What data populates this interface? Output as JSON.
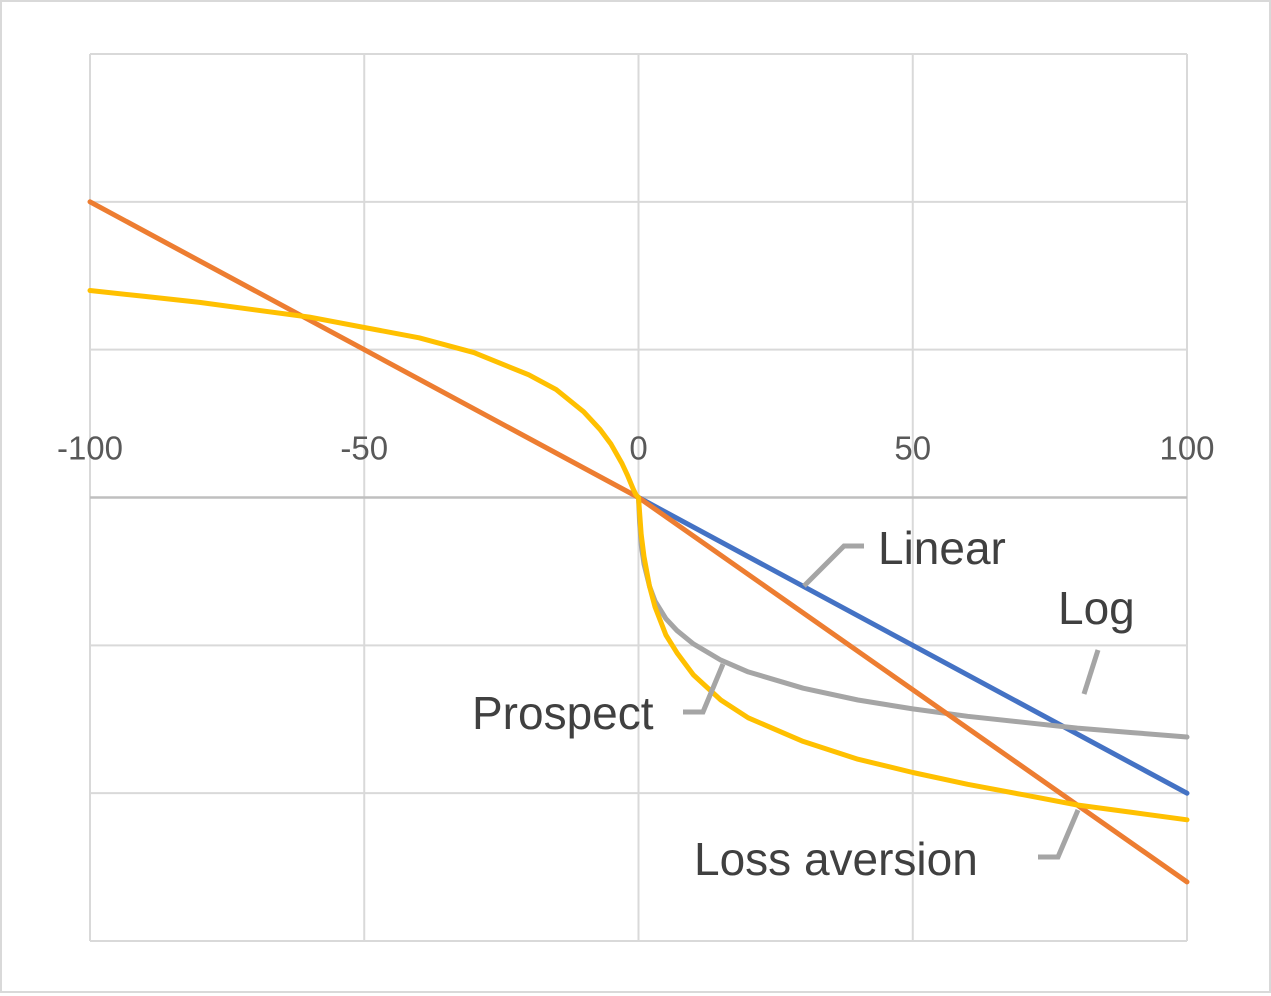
{
  "colors": {
    "grid": "#d9d9d9",
    "axis": "#bfbfbf",
    "tick_text": "#595959",
    "label_text": "#404040",
    "leader": "#a5a5a5"
  },
  "chart_data": {
    "type": "line",
    "title": "",
    "xlabel": "",
    "ylabel": "",
    "xlim": [
      -100,
      100
    ],
    "ylim": [
      -3,
      3
    ],
    "y_tick_labels_shown": false,
    "grid": true,
    "x_tick_values": [
      -100,
      -50,
      0,
      50,
      100
    ],
    "x_tick_labels": [
      "-100",
      "-50",
      "0",
      "50",
      "100"
    ],
    "y_gridlines": [
      -3,
      -2,
      -1,
      0,
      1,
      2,
      3
    ],
    "series": [
      {
        "name": "Linear",
        "color": "#4472c4",
        "x": [
          0,
          100
        ],
        "y": [
          0,
          -2
        ]
      },
      {
        "name": "Log",
        "color": "#a5a5a5",
        "x": [
          0,
          0.2,
          0.5,
          1,
          2,
          3,
          5,
          7,
          10,
          15,
          20,
          30,
          40,
          50,
          60,
          70,
          80,
          90,
          100
        ],
        "y": [
          0,
          -0.17,
          -0.32,
          -0.45,
          -0.6,
          -0.7,
          -0.82,
          -0.9,
          -0.99,
          -1.1,
          -1.18,
          -1.29,
          -1.37,
          -1.43,
          -1.48,
          -1.52,
          -1.56,
          -1.59,
          -1.62
        ]
      },
      {
        "name": "Prospect",
        "color": "#ffc000",
        "x": [
          -100,
          -90,
          -80,
          -70,
          -60,
          -50,
          -40,
          -30,
          -20,
          -15,
          -10,
          -7,
          -5,
          -3,
          -2,
          -1,
          -0.5,
          0,
          0.5,
          1,
          2,
          3,
          5,
          7,
          10,
          15,
          20,
          30,
          40,
          50,
          60,
          70,
          80,
          90,
          100
        ],
        "y": [
          1.4,
          1.36,
          1.32,
          1.27,
          1.22,
          1.15,
          1.08,
          0.98,
          0.83,
          0.73,
          0.58,
          0.46,
          0.36,
          0.23,
          0.15,
          0.06,
          0.02,
          0,
          -0.25,
          -0.4,
          -0.6,
          -0.74,
          -0.93,
          -1.05,
          -1.2,
          -1.37,
          -1.49,
          -1.65,
          -1.77,
          -1.86,
          -1.94,
          -2.01,
          -2.08,
          -2.13,
          -2.18
        ]
      },
      {
        "name": "Loss aversion",
        "color": "#ed7d31",
        "x": [
          -100,
          0,
          100
        ],
        "y": [
          2,
          0,
          -2.6
        ]
      }
    ],
    "annotations": [
      {
        "series": "Linear",
        "text": "Linear"
      },
      {
        "series": "Log",
        "text": "Log"
      },
      {
        "series": "Prospect",
        "text": "Prospect"
      },
      {
        "series": "Loss aversion",
        "text": "Loss aversion"
      }
    ]
  }
}
